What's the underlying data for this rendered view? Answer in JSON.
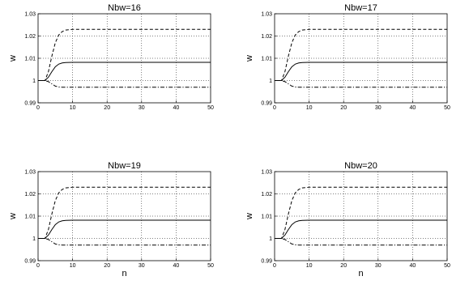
{
  "chart_data": [
    {
      "type": "line",
      "title": "Nbw=16",
      "xlabel": "",
      "ylabel": "w",
      "xlim": [
        0,
        50
      ],
      "ylim": [
        0.99,
        1.03
      ],
      "xticks": [
        "0",
        "10",
        "20",
        "30",
        "40",
        "50"
      ],
      "yticks": [
        "0.99",
        "1",
        "1.01",
        "1.02",
        "1.03"
      ],
      "grid": true,
      "series": [
        {
          "style": "dashed",
          "x": [
            0,
            2,
            3,
            4,
            5,
            6,
            7,
            8,
            10,
            12,
            15,
            20,
            30,
            40,
            50
          ],
          "values": [
            1.0,
            1.0,
            1.004,
            1.011,
            1.017,
            1.0205,
            1.022,
            1.0227,
            1.023,
            1.023,
            1.023,
            1.023,
            1.023,
            1.023,
            1.023
          ]
        },
        {
          "style": "solid",
          "x": [
            0,
            2,
            3,
            4,
            5,
            6,
            7,
            8,
            10,
            12,
            15,
            20,
            30,
            40,
            50
          ],
          "values": [
            1.0,
            1.0,
            1.0015,
            1.004,
            1.0062,
            1.0074,
            1.0079,
            1.0081,
            1.0082,
            1.0082,
            1.0082,
            1.0082,
            1.0082,
            1.0082,
            1.0082
          ]
        },
        {
          "style": "dashdot",
          "x": [
            0,
            2,
            3,
            4,
            5,
            6,
            7,
            8,
            10,
            15,
            20,
            30,
            40,
            50
          ],
          "values": [
            1.0,
            1.0,
            0.9995,
            0.9985,
            0.9975,
            0.9971,
            0.997,
            0.997,
            0.997,
            0.997,
            0.997,
            0.997,
            0.997,
            0.997
          ]
        }
      ]
    },
    {
      "type": "line",
      "title": "Nbw=17",
      "xlabel": "",
      "ylabel": "w",
      "xlim": [
        0,
        50
      ],
      "ylim": [
        0.99,
        1.03
      ],
      "xticks": [
        "0",
        "10",
        "20",
        "30",
        "40",
        "50"
      ],
      "yticks": [
        "0.99",
        "1",
        "1.01",
        "1.02",
        "1.03"
      ],
      "grid": true,
      "series": [
        {
          "style": "dashed",
          "x": [
            0,
            2,
            3,
            4,
            5,
            6,
            7,
            8,
            10,
            12,
            15,
            20,
            30,
            40,
            50
          ],
          "values": [
            1.0,
            1.0,
            1.004,
            1.011,
            1.017,
            1.0205,
            1.022,
            1.0227,
            1.023,
            1.023,
            1.023,
            1.023,
            1.023,
            1.023,
            1.023
          ]
        },
        {
          "style": "solid",
          "x": [
            0,
            2,
            3,
            4,
            5,
            6,
            7,
            8,
            10,
            12,
            15,
            20,
            30,
            40,
            50
          ],
          "values": [
            1.0,
            1.0,
            1.0015,
            1.004,
            1.0062,
            1.0074,
            1.0079,
            1.0081,
            1.0082,
            1.0082,
            1.0082,
            1.0082,
            1.0082,
            1.0082,
            1.0082
          ]
        },
        {
          "style": "dashdot",
          "x": [
            0,
            2,
            3,
            4,
            5,
            6,
            7,
            8,
            10,
            15,
            20,
            30,
            40,
            50
          ],
          "values": [
            1.0,
            1.0,
            0.9995,
            0.9985,
            0.9975,
            0.9971,
            0.997,
            0.997,
            0.997,
            0.997,
            0.997,
            0.997,
            0.997,
            0.997
          ]
        }
      ]
    },
    {
      "type": "line",
      "title": "Nbw=19",
      "xlabel": "n",
      "ylabel": "w",
      "xlim": [
        0,
        50
      ],
      "ylim": [
        0.99,
        1.03
      ],
      "xticks": [
        "0",
        "10",
        "20",
        "30",
        "40",
        "50"
      ],
      "yticks": [
        "0.99",
        "1",
        "1.01",
        "1.02",
        "1.03"
      ],
      "grid": true,
      "series": [
        {
          "style": "dashed",
          "x": [
            0,
            2,
            3,
            4,
            5,
            6,
            7,
            8,
            10,
            12,
            15,
            20,
            30,
            40,
            50
          ],
          "values": [
            1.0,
            1.0,
            1.004,
            1.011,
            1.017,
            1.0205,
            1.022,
            1.0227,
            1.023,
            1.023,
            1.023,
            1.023,
            1.023,
            1.023,
            1.023
          ]
        },
        {
          "style": "solid",
          "x": [
            0,
            2,
            3,
            4,
            5,
            6,
            7,
            8,
            10,
            12,
            15,
            20,
            30,
            40,
            50
          ],
          "values": [
            1.0,
            1.0,
            1.0015,
            1.004,
            1.0062,
            1.0074,
            1.0079,
            1.0081,
            1.0082,
            1.0082,
            1.0082,
            1.0082,
            1.0082,
            1.0082,
            1.0082
          ]
        },
        {
          "style": "dashdot",
          "x": [
            0,
            2,
            3,
            4,
            5,
            6,
            7,
            8,
            10,
            15,
            20,
            30,
            40,
            50
          ],
          "values": [
            1.0,
            1.0,
            0.9995,
            0.9985,
            0.9975,
            0.9971,
            0.997,
            0.997,
            0.997,
            0.997,
            0.997,
            0.997,
            0.997,
            0.997
          ]
        }
      ]
    },
    {
      "type": "line",
      "title": "Nbw=20",
      "xlabel": "n",
      "ylabel": "w",
      "xlim": [
        0,
        50
      ],
      "ylim": [
        0.99,
        1.03
      ],
      "xticks": [
        "0",
        "10",
        "20",
        "30",
        "40",
        "50"
      ],
      "yticks": [
        "0.99",
        "1",
        "1.01",
        "1.02",
        "1.03"
      ],
      "grid": true,
      "series": [
        {
          "style": "dashed",
          "x": [
            0,
            2,
            3,
            4,
            5,
            6,
            7,
            8,
            10,
            12,
            15,
            20,
            30,
            40,
            50
          ],
          "values": [
            1.0,
            1.0,
            1.004,
            1.011,
            1.017,
            1.0205,
            1.022,
            1.0227,
            1.023,
            1.023,
            1.023,
            1.023,
            1.023,
            1.023,
            1.023
          ]
        },
        {
          "style": "solid",
          "x": [
            0,
            2,
            3,
            4,
            5,
            6,
            7,
            8,
            10,
            12,
            15,
            20,
            30,
            40,
            50
          ],
          "values": [
            1.0,
            1.0,
            1.0015,
            1.004,
            1.0062,
            1.0074,
            1.0079,
            1.0081,
            1.0082,
            1.0082,
            1.0082,
            1.0082,
            1.0082,
            1.0082,
            1.0082
          ]
        },
        {
          "style": "dashdot",
          "x": [
            0,
            2,
            3,
            4,
            5,
            6,
            7,
            8,
            10,
            15,
            20,
            30,
            40,
            50
          ],
          "values": [
            1.0,
            1.0,
            0.9995,
            0.9985,
            0.9975,
            0.9971,
            0.997,
            0.997,
            0.997,
            0.997,
            0.997,
            0.997,
            0.997,
            0.997
          ]
        }
      ]
    }
  ]
}
